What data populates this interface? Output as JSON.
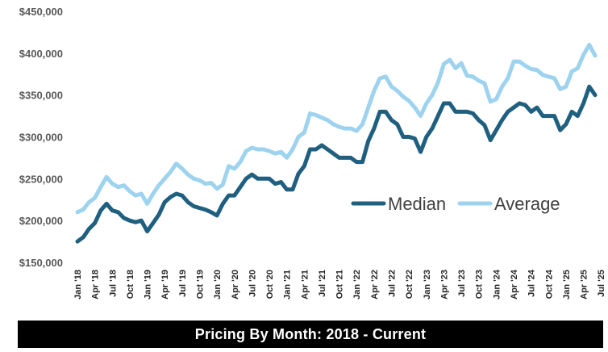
{
  "chart_data": {
    "type": "line",
    "title": "",
    "xlabel": "",
    "ylabel": "",
    "ylim": [
      150000,
      450000
    ],
    "y_ticks": [
      "$150,000",
      "$200,000",
      "$250,000",
      "$300,000",
      "$350,000",
      "$400,000",
      "$450,000"
    ],
    "y_tick_values": [
      150000,
      200000,
      250000,
      300000,
      350000,
      400000,
      450000
    ],
    "x_tick_labels": [
      "Jan '18",
      "Apr '18",
      "Jul '18",
      "Oct '18",
      "Jan '19",
      "Apr '19",
      "Jul '19",
      "Oct '19",
      "Jan '20",
      "Apr '20",
      "Jul '20",
      "Oct '20",
      "Jan '21",
      "Apr '21",
      "Jul '21",
      "Oct '21",
      "Jan '22",
      "Apr '22",
      "Jul '22",
      "Oct '22",
      "Jan '23",
      "Apr '23",
      "Jul '23",
      "Oct '23",
      "Jan '24",
      "Apr '24",
      "Jul '24",
      "Oct '24",
      "Jan '25",
      "Apr '25",
      "Jul '25"
    ],
    "legend_position": "center-right",
    "grid": false,
    "series": [
      {
        "name": "Median",
        "color": "#1f5f7f",
        "values": [
          175000,
          180000,
          190000,
          197000,
          212000,
          220000,
          212000,
          210000,
          203000,
          200000,
          198000,
          200000,
          187000,
          197000,
          207000,
          222000,
          228000,
          232000,
          230000,
          222000,
          217000,
          215000,
          213000,
          210000,
          206000,
          220000,
          230000,
          230000,
          240000,
          250000,
          255000,
          250000,
          250000,
          250000,
          244000,
          246000,
          237000,
          237000,
          256000,
          265000,
          285000,
          285000,
          290000,
          285000,
          280000,
          275000,
          275000,
          275000,
          270000,
          270000,
          295000,
          310000,
          330000,
          330000,
          320000,
          315000,
          300000,
          300000,
          298000,
          282000,
          300000,
          310000,
          325000,
          340000,
          340000,
          330000,
          330000,
          330000,
          328000,
          320000,
          314000,
          296000,
          308000,
          320000,
          330000,
          335000,
          340000,
          338000,
          330000,
          335000,
          325000,
          325000,
          325000,
          308000,
          315000,
          330000,
          325000,
          340000,
          360000,
          350000
        ]
      },
      {
        "name": "Average",
        "color": "#9dd3ef",
        "values": [
          210000,
          213000,
          222000,
          227000,
          240000,
          252000,
          244000,
          240000,
          242000,
          235000,
          230000,
          232000,
          220000,
          232000,
          242000,
          250000,
          258000,
          268000,
          262000,
          255000,
          250000,
          248000,
          244000,
          245000,
          238000,
          243000,
          265000,
          262000,
          270000,
          283000,
          287000,
          285000,
          285000,
          283000,
          280000,
          282000,
          275000,
          285000,
          300000,
          305000,
          328000,
          326000,
          323000,
          320000,
          315000,
          312000,
          310000,
          310000,
          307000,
          315000,
          335000,
          355000,
          370000,
          372000,
          360000,
          355000,
          348000,
          343000,
          335000,
          325000,
          340000,
          350000,
          365000,
          387000,
          392000,
          382000,
          388000,
          373000,
          372000,
          367000,
          364000,
          342000,
          345000,
          360000,
          370000,
          390000,
          390000,
          385000,
          381000,
          380000,
          374000,
          372000,
          370000,
          357000,
          360000,
          378000,
          382000,
          398000,
          410000,
          397000
        ]
      }
    ]
  },
  "caption": "Pricing By Month: 2018 - Current"
}
